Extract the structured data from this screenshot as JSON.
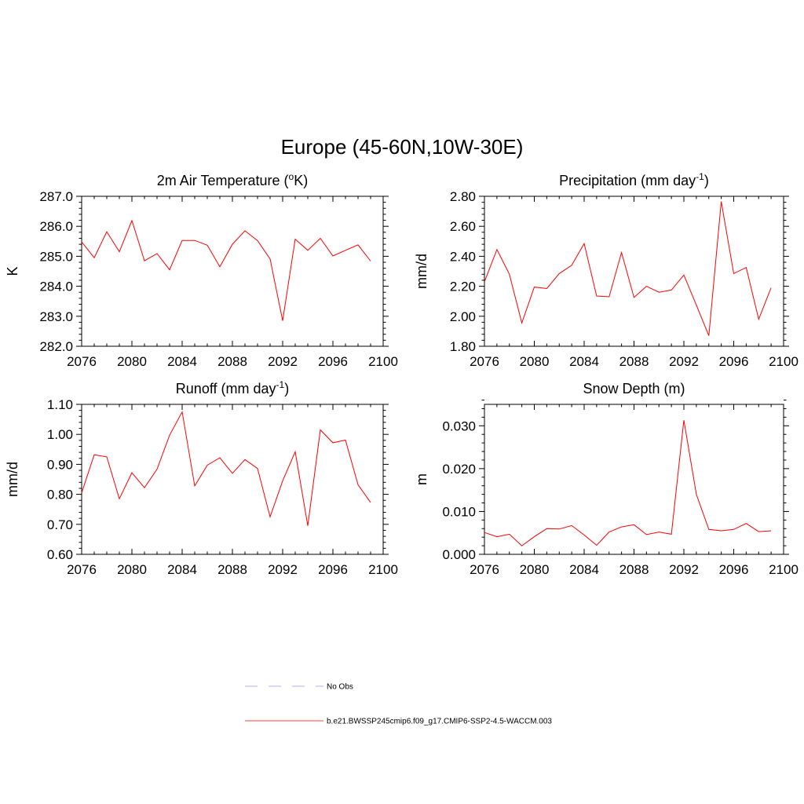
{
  "title": "Europe (45-60N,10W-30E)",
  "chart_data": [
    {
      "type": "line",
      "title": "2m Air Temperature (",
      "title_super": "o",
      "title_after": "K)",
      "ylabel": "K",
      "xlim": [
        2076,
        2100
      ],
      "ylim": [
        282.0,
        287.0
      ],
      "xticks": [
        2076,
        2080,
        2084,
        2088,
        2092,
        2096,
        2100
      ],
      "xtick_labels": [
        "2076",
        "2080",
        "2084",
        "2088",
        "2092",
        "2096",
        "2100"
      ],
      "yticks": [
        282.0,
        283.0,
        284.0,
        285.0,
        286.0,
        287.0
      ],
      "ytick_labels": [
        "282.0",
        "283.0",
        "284.0",
        "285.0",
        "286.0",
        "287.0"
      ],
      "x": [
        2076,
        2077,
        2078,
        2079,
        2080,
        2081,
        2082,
        2083,
        2084,
        2085,
        2086,
        2087,
        2088,
        2089,
        2090,
        2091,
        2092,
        2093,
        2094,
        2095,
        2096,
        2097,
        2098,
        2099
      ],
      "y": [
        285.48,
        284.95,
        285.82,
        285.15,
        286.19,
        284.85,
        285.09,
        284.55,
        285.53,
        285.53,
        285.37,
        284.65,
        285.4,
        285.85,
        285.52,
        284.91,
        282.85,
        285.57,
        285.2,
        285.6,
        285.01,
        285.2,
        285.38,
        284.84
      ],
      "color": "#ff0000"
    },
    {
      "type": "line",
      "title": "Precipitation (mm day",
      "title_super": "-1",
      "title_after": ")",
      "ylabel": "mm/d",
      "xlim": [
        2076,
        2100
      ],
      "ylim": [
        1.8,
        2.8
      ],
      "xticks": [
        2076,
        2080,
        2084,
        2088,
        2092,
        2096,
        2100
      ],
      "xtick_labels": [
        "2076",
        "2080",
        "2084",
        "2088",
        "2092",
        "2096",
        "2100"
      ],
      "yticks": [
        1.8,
        2.0,
        2.2,
        2.4,
        2.6,
        2.8
      ],
      "ytick_labels": [
        "1.80",
        "2.00",
        "2.20",
        "2.40",
        "2.60",
        "2.80"
      ],
      "x": [
        2076,
        2077,
        2078,
        2079,
        2080,
        2081,
        2082,
        2083,
        2084,
        2085,
        2086,
        2087,
        2088,
        2089,
        2090,
        2091,
        2092,
        2093,
        2094,
        2095,
        2096,
        2097,
        2098,
        2099
      ],
      "y": [
        2.23,
        2.445,
        2.28,
        1.955,
        2.195,
        2.185,
        2.285,
        2.34,
        2.485,
        2.135,
        2.13,
        2.425,
        2.125,
        2.2,
        2.16,
        2.175,
        2.275,
        2.075,
        1.87,
        2.765,
        2.285,
        2.325,
        1.98,
        2.19
      ],
      "color": "#ff0000"
    },
    {
      "type": "line",
      "title": "Runoff (mm day",
      "title_super": "-1",
      "title_after": ")",
      "ylabel": "mm/d",
      "xlim": [
        2076,
        2100
      ],
      "ylim": [
        0.6,
        1.1
      ],
      "xticks": [
        2076,
        2080,
        2084,
        2088,
        2092,
        2096,
        2100
      ],
      "xtick_labels": [
        "2076",
        "2080",
        "2084",
        "2088",
        "2092",
        "2096",
        "2100"
      ],
      "yticks": [
        0.6,
        0.7,
        0.8,
        0.9,
        1.0,
        1.1
      ],
      "ytick_labels": [
        "0.60",
        "0.70",
        "0.80",
        "0.90",
        "1.00",
        "1.10"
      ],
      "x": [
        2076,
        2077,
        2078,
        2079,
        2080,
        2081,
        2082,
        2083,
        2084,
        2085,
        2086,
        2087,
        2088,
        2089,
        2090,
        2091,
        2092,
        2093,
        2094,
        2095,
        2096,
        2097,
        2098,
        2099
      ],
      "y": [
        0.805,
        0.932,
        0.925,
        0.785,
        0.872,
        0.822,
        0.884,
        0.997,
        1.075,
        0.828,
        0.897,
        0.922,
        0.87,
        0.916,
        0.886,
        0.725,
        0.845,
        0.942,
        0.695,
        1.015,
        0.972,
        0.981,
        0.832,
        0.773
      ],
      "color": "#ff0000"
    },
    {
      "type": "line",
      "title": "Snow Depth (m)",
      "title_super": "",
      "title_after": "",
      "ylabel": "m",
      "xlim": [
        2076,
        2100
      ],
      "ylim": [
        0.0,
        0.035
      ],
      "xticks": [
        2076,
        2080,
        2084,
        2088,
        2092,
        2096,
        2100
      ],
      "xtick_labels": [
        "2076",
        "2080",
        "2084",
        "2088",
        "2092",
        "2096",
        "2100"
      ],
      "yticks": [
        0.0,
        0.01,
        0.02,
        0.03
      ],
      "ytick_labels": [
        "0.000",
        "0.010",
        "0.020",
        "0.030"
      ],
      "x": [
        2076,
        2077,
        2078,
        2079,
        2080,
        2081,
        2082,
        2083,
        2084,
        2085,
        2086,
        2087,
        2088,
        2089,
        2090,
        2091,
        2092,
        2093,
        2094,
        2095,
        2096,
        2097,
        2098,
        2099
      ],
      "y": [
        0.0051,
        0.0041,
        0.0047,
        0.002,
        0.0041,
        0.006,
        0.0059,
        0.0067,
        0.0045,
        0.0021,
        0.0052,
        0.0064,
        0.0069,
        0.0046,
        0.0052,
        0.0047,
        0.0313,
        0.014,
        0.0058,
        0.0055,
        0.0058,
        0.0072,
        0.0053,
        0.0055
      ],
      "color": "#ff0000"
    }
  ],
  "legend": [
    {
      "label": "No Obs",
      "color": "#b0b0ff",
      "style": "dashed"
    },
    {
      "label": "b.e21.BWSSP245cmip6.f09_g17.CMIP6-SSP2-4.5-WACCM.003",
      "color": "#ff4040",
      "style": "solid"
    }
  ]
}
